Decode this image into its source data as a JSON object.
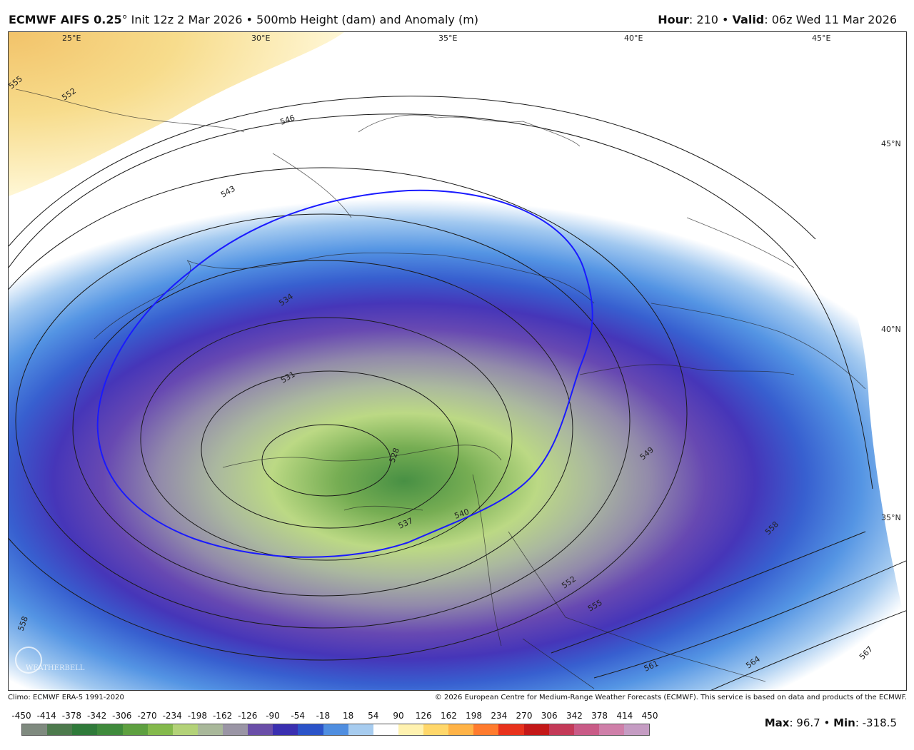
{
  "header": {
    "model": "ECMWF AIFS 0.25",
    "degree": "°",
    "init": " Init 12z 2 Mar 2026 • 500mb Height (dam) and Anomaly (m)",
    "hour_label": "Hour",
    "hour_value": ": 210 • ",
    "valid_label": "Valid",
    "valid_value": ": 06z Wed 11 Mar 2026"
  },
  "map": {
    "lon_labels": [
      "25°E",
      "30°E",
      "35°E",
      "40°E",
      "45°E"
    ],
    "lat_labels": [
      "45°N",
      "40°N",
      "35°N"
    ],
    "contour_labels": [
      "555",
      "552",
      "546",
      "543",
      "534",
      "531",
      "528",
      "537",
      "540",
      "549",
      "558",
      "552",
      "555",
      "561",
      "564",
      "567",
      "558"
    ],
    "watermark": "WEATHERBELL"
  },
  "footer": {
    "climo": "Climo: ECMWF ERA-5 1991-2020",
    "copyright": "© 2026 European Centre for Medium-Range Weather Forecasts (ECMWF). This service is based on data and products of the ECMWF.",
    "max_label": "Max",
    "max_value": ": 96.7 • ",
    "min_label": "Min",
    "min_value": ": -318.5"
  },
  "colorbar": {
    "ticks": [
      "-450",
      "-414",
      "-378",
      "-342",
      "-306",
      "-270",
      "-234",
      "-198",
      "-162",
      "-126",
      "-90",
      "-54",
      "-18",
      "18",
      "54",
      "90",
      "126",
      "162",
      "198",
      "234",
      "270",
      "306",
      "342",
      "378",
      "414",
      "450"
    ],
    "colors": [
      "#7f8a7f",
      "#4d7a4d",
      "#2f7a3a",
      "#3f8a3c",
      "#5ea040",
      "#84b94c",
      "#b3d278",
      "#a9b89a",
      "#9a95a5",
      "#6a4ea8",
      "#3a2fb0",
      "#2b53c8",
      "#4f8ee0",
      "#a7ccef",
      "#ffffff",
      "#fff2b0",
      "#ffd76a",
      "#ffb347",
      "#ff7b2e",
      "#e8321c",
      "#c41818",
      "#c43a58",
      "#c95b87",
      "#cf7fa9",
      "#c59cc3"
    ]
  }
}
